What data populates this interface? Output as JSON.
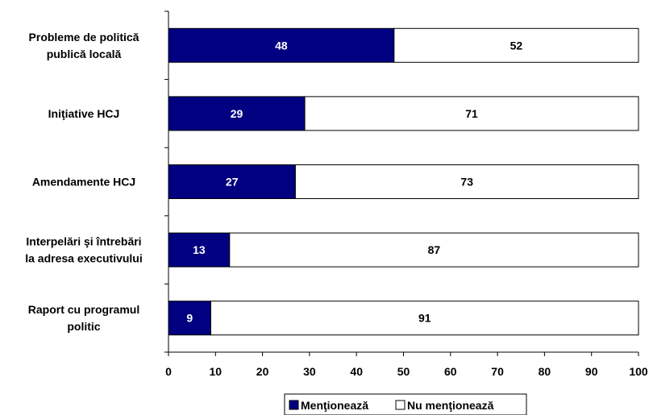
{
  "chart_data": {
    "type": "bar",
    "orientation": "horizontal",
    "stacked": true,
    "categories": [
      [
        "Probleme de politică",
        "publică locală"
      ],
      [
        "Iniţiative HCJ"
      ],
      [
        "Amendamente HCJ"
      ],
      [
        "Interpelări şi întrebări",
        "la adresa executivului"
      ],
      [
        "Raport cu programul",
        "politic"
      ]
    ],
    "series": [
      {
        "name": "Menţionează",
        "color": "#000080",
        "label_color": "#ffffff",
        "values": [
          48,
          29,
          27,
          13,
          9
        ]
      },
      {
        "name": "Nu menţionează",
        "color": "#ffffff",
        "label_color": "#000000",
        "values": [
          52,
          71,
          73,
          87,
          91
        ]
      }
    ],
    "xlim": [
      0,
      100
    ],
    "xticks": [
      0,
      10,
      20,
      30,
      40,
      50,
      60,
      70,
      80,
      90,
      100
    ],
    "grid": false,
    "legend_position": "bottom-center"
  }
}
